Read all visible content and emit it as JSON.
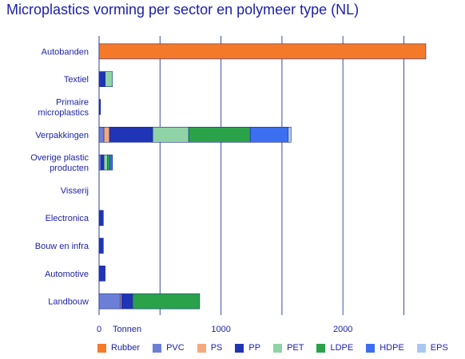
{
  "title": "Microplastics vorming per sector en polymeer type (NL)",
  "chart_data": {
    "type": "bar",
    "orientation": "horizontal",
    "stacked": true,
    "title": "Microplastics vorming per sector en polymeer type (NL)",
    "xlabel": "Tonnen",
    "xlim": [
      0,
      2700
    ],
    "xticks": [
      0,
      1000,
      2000
    ],
    "grid": "vertical",
    "legend_position": "bottom",
    "categories": [
      "Autobanden",
      "Textiel",
      "Primaire\nmicroplastics",
      "Verpakkingen",
      "Overige plastic\nproducten",
      "Visserij",
      "Electronica",
      "Bouw en infra",
      "Automotive",
      "Landbouw"
    ],
    "series": [
      {
        "name": "Rubber",
        "color": "#f47a2a",
        "values": [
          2680,
          0,
          0,
          0,
          0,
          0,
          0,
          0,
          0,
          0
        ]
      },
      {
        "name": "PVC",
        "color": "#6b7fd6",
        "values": [
          0,
          0,
          0,
          40,
          15,
          0,
          0,
          0,
          0,
          175
        ]
      },
      {
        "name": "PS",
        "color": "#f5a97f",
        "values": [
          0,
          0,
          0,
          45,
          0,
          0,
          0,
          0,
          0,
          10
        ]
      },
      {
        "name": "PP",
        "color": "#1f35b5",
        "values": [
          0,
          50,
          12,
          355,
          25,
          0,
          35,
          35,
          50,
          90
        ]
      },
      {
        "name": "PET",
        "color": "#8fd3a6",
        "values": [
          0,
          60,
          0,
          295,
          30,
          0,
          0,
          0,
          0,
          0
        ]
      },
      {
        "name": "LDPE",
        "color": "#2aa24a",
        "values": [
          0,
          0,
          0,
          505,
          20,
          0,
          0,
          0,
          0,
          550
        ]
      },
      {
        "name": "HDPE",
        "color": "#3b6ff0",
        "values": [
          0,
          0,
          0,
          310,
          20,
          0,
          0,
          0,
          0,
          0
        ]
      },
      {
        "name": "EPS",
        "color": "#a9c7f5",
        "values": [
          0,
          0,
          0,
          25,
          0,
          0,
          0,
          0,
          0,
          0
        ]
      }
    ]
  }
}
